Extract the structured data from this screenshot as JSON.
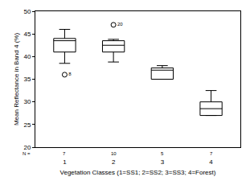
{
  "chart_data": {
    "type": "box",
    "x_label": "Vegetation Classes (1=SS1; 2=SS2; 3=SS3; 4=Forest)",
    "y_label": "Mean Reflectance in Band 4 (%)",
    "categories": [
      "1",
      "2",
      "3",
      "4"
    ],
    "lowerfence": [
      38.5,
      38.8,
      35,
      27
    ],
    "q1": [
      41,
      41,
      35,
      27
    ],
    "median": [
      43.5,
      42.5,
      37,
      28.5
    ],
    "q3": [
      44,
      43.5,
      37.5,
      30
    ],
    "upperfence": [
      46,
      43.8,
      38,
      32.5
    ],
    "outliers": [
      {
        "category": "1",
        "value": 36,
        "label": "8"
      },
      {
        "category": "2",
        "value": 47,
        "label": "20"
      }
    ],
    "n_label": "N =",
    "n": [
      7,
      10,
      5,
      7
    ],
    "color": "#000000",
    "marker": "open-circle",
    "ylim": [
      20,
      50
    ],
    "yticks": [
      20,
      25,
      30,
      35,
      40,
      45,
      50
    ],
    "grid": false
  }
}
